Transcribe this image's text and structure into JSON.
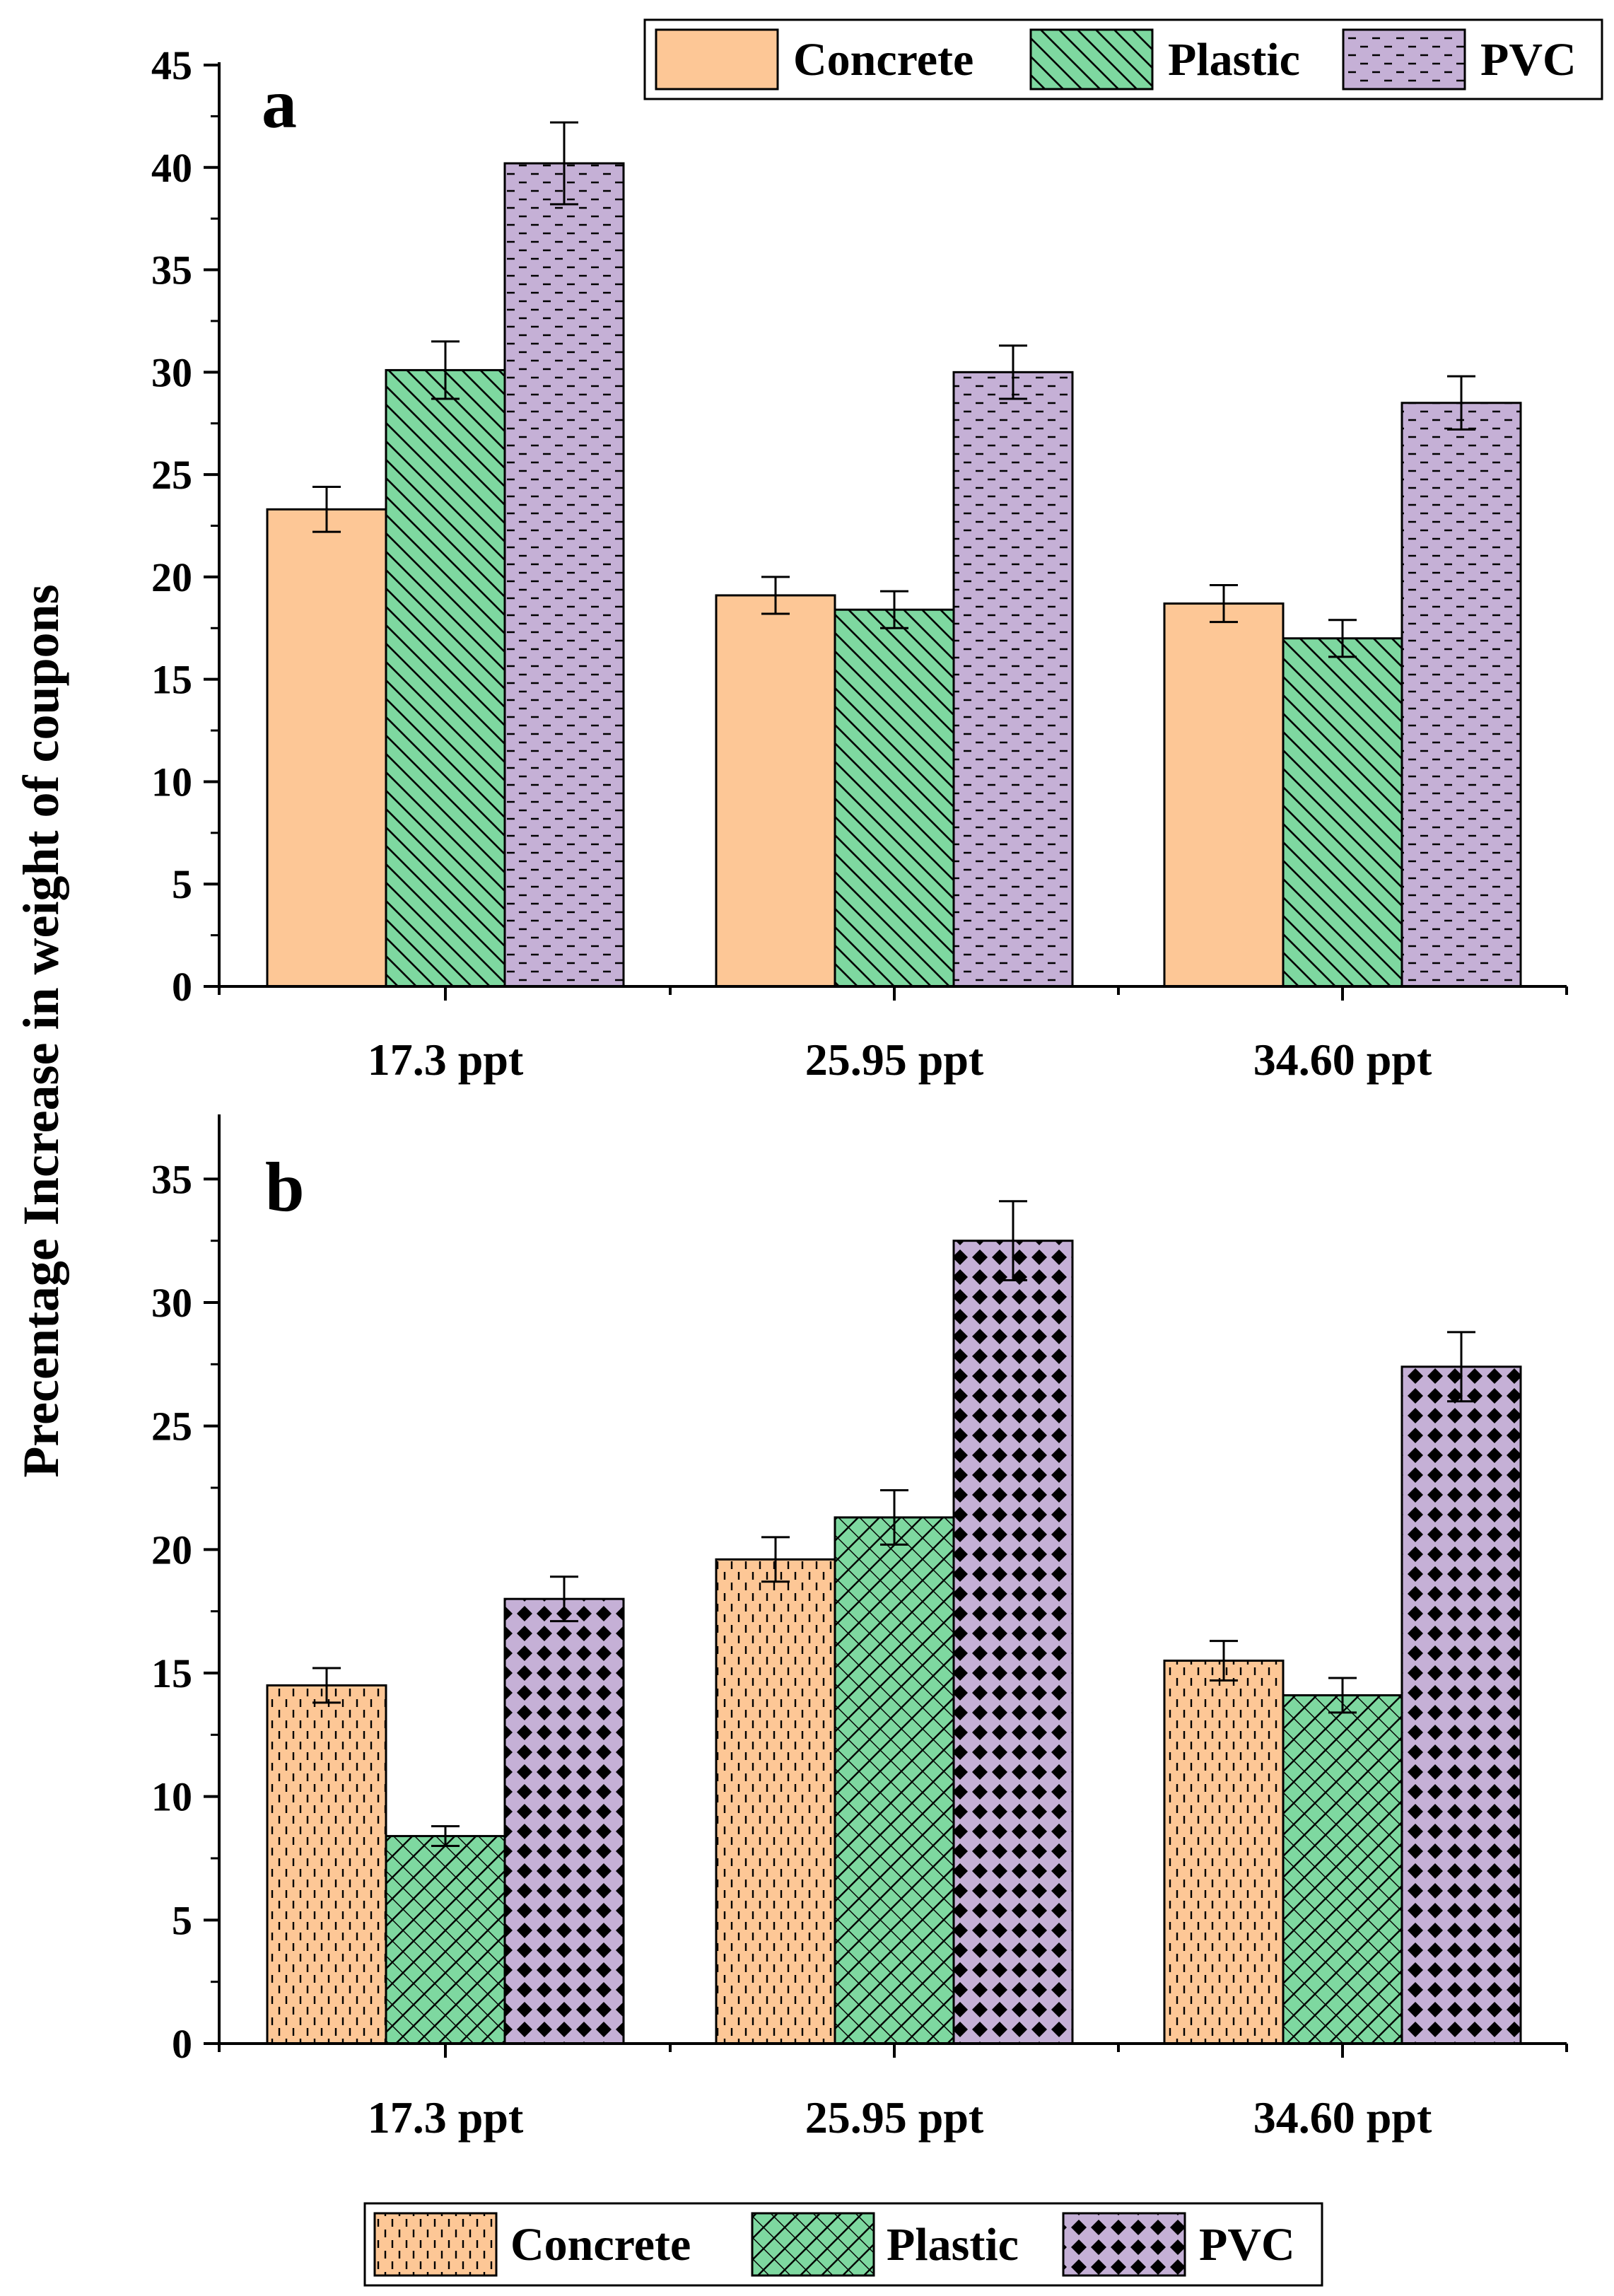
{
  "colors": {
    "concrete": "#fdc796",
    "plastic": "#7ed8a0",
    "pvc": "#c5b0d6",
    "ink": "#000000"
  },
  "chart_data": [
    {
      "type": "bar",
      "panel_label": "a",
      "categories": [
        "17.3 ppt",
        "25.95 ppt",
        "34.60 ppt"
      ],
      "series": [
        {
          "name": "Concrete",
          "values": [
            23.3,
            19.1,
            18.7
          ],
          "errors": [
            1.1,
            0.9,
            0.9
          ]
        },
        {
          "name": "Plastic",
          "values": [
            30.1,
            18.4,
            17.0
          ],
          "errors": [
            1.4,
            0.9,
            0.9
          ]
        },
        {
          "name": "PVC",
          "values": [
            40.2,
            30.0,
            28.5
          ],
          "errors": [
            2.0,
            1.3,
            1.3
          ]
        }
      ],
      "ylim": [
        0,
        45
      ],
      "yticks": [
        "0",
        "5",
        "10",
        "15",
        "20",
        "25",
        "30",
        "35",
        "40",
        "45"
      ],
      "legend": {
        "position": "top-right",
        "entries": [
          "Concrete",
          "Plastic",
          "PVC"
        ]
      }
    },
    {
      "type": "bar",
      "panel_label": "b",
      "categories": [
        "17.3 ppt",
        "25.95 ppt",
        "34.60 ppt"
      ],
      "series": [
        {
          "name": "Concrete",
          "values": [
            14.5,
            19.6,
            15.5
          ],
          "errors": [
            0.7,
            0.9,
            0.8
          ]
        },
        {
          "name": "Plastic",
          "values": [
            8.4,
            21.3,
            14.1
          ],
          "errors": [
            0.4,
            1.1,
            0.7
          ]
        },
        {
          "name": "PVC",
          "values": [
            18.0,
            32.5,
            27.4
          ],
          "errors": [
            0.9,
            1.6,
            1.4
          ]
        }
      ],
      "ylim": [
        0,
        37.5
      ],
      "yticks": [
        "0",
        "5",
        "10",
        "15",
        "20",
        "25",
        "30",
        "35"
      ],
      "legend": {
        "position": "bottom",
        "entries": [
          "Concrete",
          "Plastic",
          "PVC"
        ]
      }
    }
  ],
  "ylabel": "Precentage Increase in weight of coupons"
}
